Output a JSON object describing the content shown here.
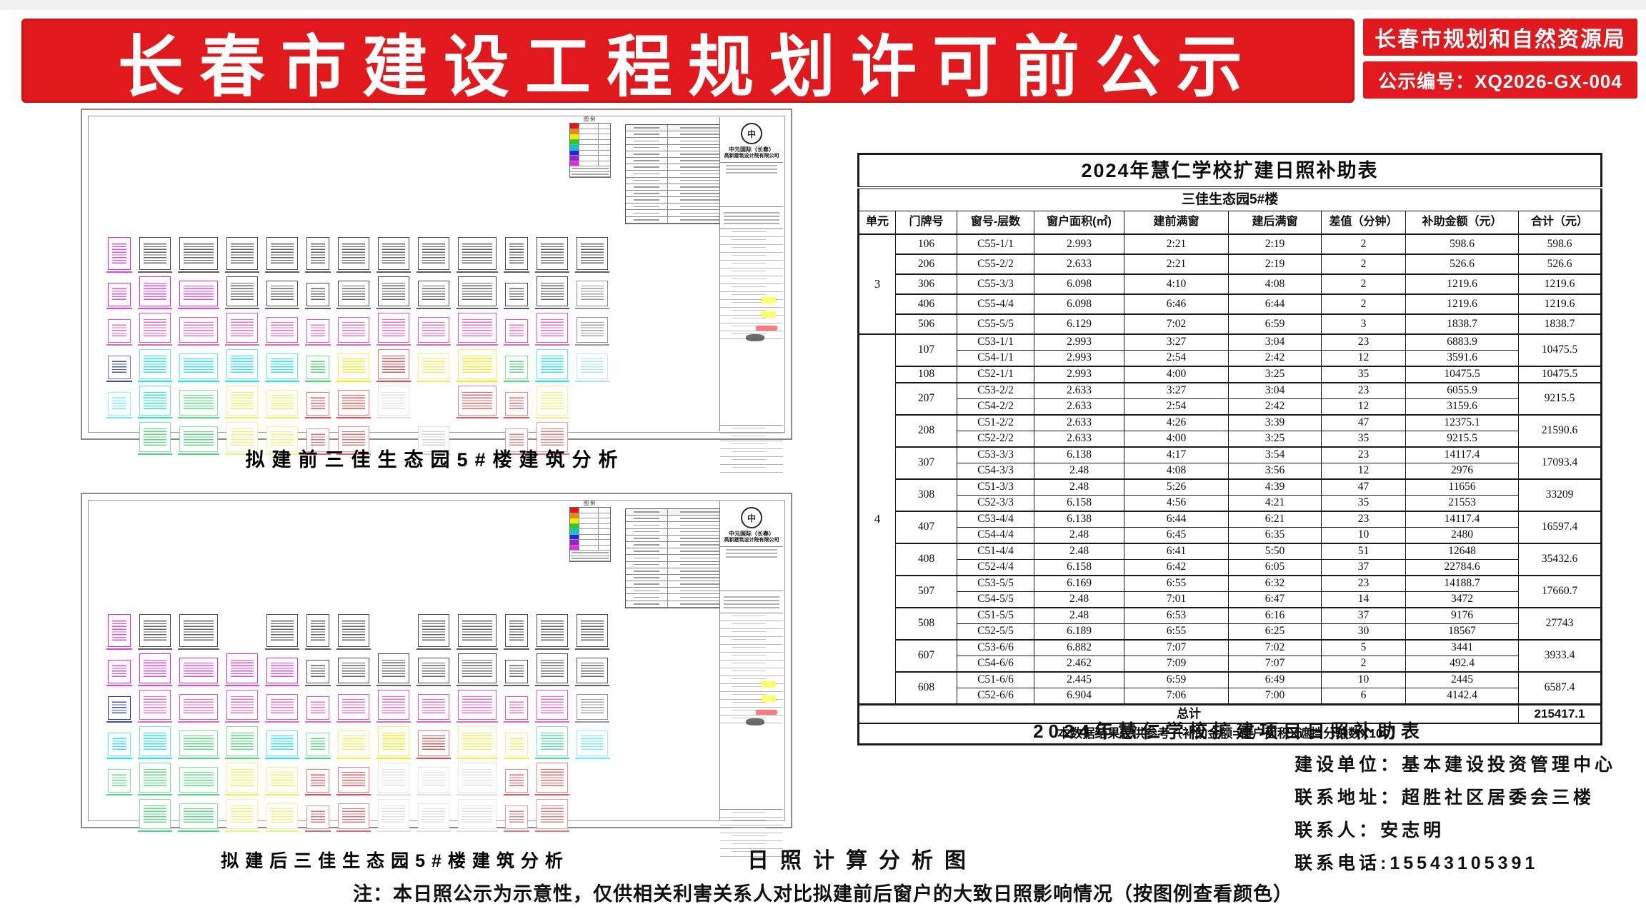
{
  "header": {
    "title": "长春市建设工程规划许可前公示",
    "agency": "长春市规划和自然资源局",
    "notice_no": "公示编号：XQ2026-GX-004",
    "banner_red": "#e2191c"
  },
  "drawings": [
    {
      "caption": "拟建前三佳生态园5#楼建筑分析",
      "legend_label": "图例",
      "legend_colors": [
        "#ee1111",
        "#ee8800",
        "#eeee00",
        "#22cc22",
        "#00cccc",
        "#2222ee",
        "#9922cc",
        "#ee22ee"
      ],
      "company_line1": "中元国际（长春）",
      "company_line2": "高新建筑设计院有限公司",
      "logo_glyph": "中",
      "grid_rows": [
        [
          "#ee22ee",
          "#4a4a4a",
          "#4a4a4a",
          "#4a4a4a",
          "#4a4a4a",
          "#4a4a4a",
          "#4a4a4a",
          "#4a4a4a",
          "#4a4a4a",
          "#4a4a4a",
          "#4a4a4a",
          "#4a4a4a",
          "#4a4a4a"
        ],
        [
          "#ee22ee",
          "#ee22ee",
          "#ee22ee",
          "#4a4a4a",
          "#4a4a4a",
          "#4a4a4a",
          "#4a4a4a",
          "#4a4a4a",
          "#4a4a4a",
          "#4a4a4a",
          "#4a4a4a",
          "#4a4a4a",
          "#8a8a8a"
        ],
        [
          "#f050c0",
          "#f050c0",
          "#f050c0",
          "#f050c0",
          "#f050c0",
          "#f050c0",
          "#f050c0",
          "#f050c0",
          "#f050c0",
          "#f050c0",
          "#f050c0",
          "#f050c0",
          "#909090"
        ],
        [
          "#2233cc",
          "#00e5ff",
          "#00e5ff",
          "#00e5ff",
          "#00e5ff",
          "#22dd55",
          "#eeee00",
          "#ee3333",
          "#eeee44",
          "#eeee00",
          "#33dd66",
          "#00e5ff",
          "#99e0ff"
        ],
        [
          "#55eeff",
          "#00e5cc",
          "#33dd66",
          "#eeee44",
          "#eeee44",
          "#ee3333",
          "#ee3333",
          "#dddddd",
          null,
          "#ee4444",
          "#ee4444",
          "#eeee66",
          null
        ],
        [
          null,
          "#33dd66",
          "#33dd66",
          "#eeee66",
          "#eeee66",
          "#ee5555",
          "#ee5555",
          null,
          "#cccccc",
          null,
          "#ee6666",
          "#ee6666",
          null
        ]
      ]
    },
    {
      "caption": "拟建后三佳生态园5#楼建筑分析",
      "legend_label": "图例",
      "legend_colors": [
        "#ee1111",
        "#ee8800",
        "#eeee00",
        "#22cc22",
        "#00cccc",
        "#2222ee",
        "#9922cc",
        "#ee22ee"
      ],
      "company_line1": "中元国际（长春）",
      "company_line2": "高新建筑设计院有限公司",
      "logo_glyph": "中",
      "grid_rows": [
        [
          "#ee22ee",
          "#4a4a4a",
          "#4a4a4a",
          null,
          "#4a4a4a",
          "#4a4a4a",
          "#4a4a4a",
          null,
          "#4a4a4a",
          "#4a4a4a",
          "#4a4a4a",
          "#4a4a4a",
          "#4a4a4a"
        ],
        [
          "#ee22ee",
          "#ee22ee",
          "#ee22ee",
          "#ee22ee",
          "#ee22ee",
          "#4a4a4a",
          "#4a4a4a",
          "#4a4a4a",
          "#4a4a4a",
          "#4a4a4a",
          "#4a4a4a",
          "#4a4a4a",
          "#4a4a4a"
        ],
        [
          "#2233cc",
          "#f050c0",
          "#f050c0",
          "#f050c0",
          "#f050c0",
          "#f050c0",
          "#f050c0",
          "#f050c0",
          "#f050c0",
          "#f050c0",
          "#f050c0",
          "#f050c0",
          "#909090"
        ],
        [
          "#00e5ff",
          "#00e5ff",
          "#33dd66",
          "#33dd66",
          "#00e5ff",
          "#33dd66",
          "#eeee44",
          "#eeee00",
          "#ee3333",
          "#eeee44",
          "#eeee44",
          "#33dd99",
          "#55eeff"
        ],
        [
          "#33dd66",
          "#33dd66",
          "#33dd66",
          "#eeee44",
          "#eeee44",
          "#ee3333",
          "#ee3333",
          "#dddddd",
          "#dddddd",
          "#dddddd",
          "#ee4444",
          "#ee4444",
          null
        ],
        [
          null,
          "#33dd66",
          "#33dd66",
          "#eeee66",
          "#eeee66",
          "#ee5555",
          "#ee5555",
          "#dddddd",
          "#dddddd",
          "#dddddd",
          "#ee6666",
          "#ee6666",
          null
        ]
      ]
    }
  ],
  "analysis_title": "日照计算分析图",
  "note": "注：本日照公示为示意性，仅供相关利害关系人对比拟建前后窗户的大致日照影响情况（按图例查看颜色）",
  "table_caption": "2024年慧仁学校扩建项目日照补助表",
  "contacts": {
    "lines": [
      "建设单位：基本建设投资管理中心",
      "联系地址：超胜社区居委会三楼",
      "联系人：安志明",
      "联系电话:15543105391"
    ]
  },
  "subsidy_table": {
    "title": "2024年慧仁学校扩建日照补助表",
    "subtitle": "三佳生态园5#楼",
    "columns": [
      "单元",
      "门牌号",
      "窗号-层数",
      "窗户面积(㎡)",
      "建前满窗",
      "建后满窗",
      "差值（分钟）",
      "补助金额（元）",
      "合计（元）"
    ],
    "groups": [
      {
        "unit": "3",
        "doors": [
          {
            "door": "106",
            "rows": [
              [
                "C55-1/1",
                "2.993",
                "2:21",
                "2:19",
                "2",
                "598.6"
              ]
            ],
            "total": "598.6"
          },
          {
            "door": "206",
            "rows": [
              [
                "C55-2/2",
                "2.633",
                "2:21",
                "2:19",
                "2",
                "526.6"
              ]
            ],
            "total": "526.6"
          },
          {
            "door": "306",
            "rows": [
              [
                "C55-3/3",
                "6.098",
                "4:10",
                "4:08",
                "2",
                "1219.6"
              ]
            ],
            "total": "1219.6"
          },
          {
            "door": "406",
            "rows": [
              [
                "C55-4/4",
                "6.098",
                "6:46",
                "6:44",
                "2",
                "1219.6"
              ]
            ],
            "total": "1219.6"
          },
          {
            "door": "506",
            "rows": [
              [
                "C55-5/5",
                "6.129",
                "7:02",
                "6:59",
                "3",
                "1838.7"
              ]
            ],
            "total": "1838.7"
          }
        ]
      },
      {
        "unit": "4",
        "doors": [
          {
            "door": "107",
            "rows": [
              [
                "C53-1/1",
                "2.993",
                "3:27",
                "3:04",
                "23",
                "6883.9"
              ],
              [
                "C54-1/1",
                "2.993",
                "2:54",
                "2:42",
                "12",
                "3591.6"
              ]
            ],
            "total": "10475.5"
          },
          {
            "door": "108",
            "rows": [
              [
                "C52-1/1",
                "2.993",
                "4:00",
                "3:25",
                "35",
                "10475.5"
              ]
            ],
            "total": "10475.5"
          },
          {
            "door": "207",
            "rows": [
              [
                "C53-2/2",
                "2.633",
                "3:27",
                "3:04",
                "23",
                "6055.9"
              ],
              [
                "C54-2/2",
                "2.633",
                "2:54",
                "2:42",
                "12",
                "3159.6"
              ]
            ],
            "total": "9215.5"
          },
          {
            "door": "208",
            "rows": [
              [
                "C51-2/2",
                "2.633",
                "4:26",
                "3:39",
                "47",
                "12375.1"
              ],
              [
                "C52-2/2",
                "2.633",
                "4:00",
                "3:25",
                "35",
                "9215.5"
              ]
            ],
            "total": "21590.6"
          },
          {
            "door": "307",
            "rows": [
              [
                "C53-3/3",
                "6.138",
                "4:17",
                "3:54",
                "23",
                "14117.4"
              ],
              [
                "C54-3/3",
                "2.48",
                "4:08",
                "3:56",
                "12",
                "2976"
              ]
            ],
            "total": "17093.4"
          },
          {
            "door": "308",
            "rows": [
              [
                "C51-3/3",
                "2.48",
                "5:26",
                "4:39",
                "47",
                "11656"
              ],
              [
                "C52-3/3",
                "6.158",
                "4:56",
                "4:21",
                "35",
                "21553"
              ]
            ],
            "total": "33209"
          },
          {
            "door": "407",
            "rows": [
              [
                "C53-4/4",
                "6.138",
                "6:44",
                "6:21",
                "23",
                "14117.4"
              ],
              [
                "C54-4/4",
                "2.48",
                "6:45",
                "6:35",
                "10",
                "2480"
              ]
            ],
            "total": "16597.4"
          },
          {
            "door": "408",
            "rows": [
              [
                "C51-4/4",
                "2.48",
                "6:41",
                "5:50",
                "51",
                "12648"
              ],
              [
                "C52-4/4",
                "6.158",
                "6:42",
                "6:05",
                "37",
                "22784.6"
              ]
            ],
            "total": "35432.6"
          },
          {
            "door": "507",
            "rows": [
              [
                "C53-5/5",
                "6.169",
                "6:55",
                "6:32",
                "23",
                "14188.7"
              ],
              [
                "C54-5/5",
                "2.48",
                "7:01",
                "6:47",
                "14",
                "3472"
              ]
            ],
            "total": "17660.7"
          },
          {
            "door": "508",
            "rows": [
              [
                "C51-5/5",
                "2.48",
                "6:53",
                "6:16",
                "37",
                "9176"
              ],
              [
                "C52-5/5",
                "6.189",
                "6:55",
                "6:25",
                "30",
                "18567"
              ]
            ],
            "total": "27743"
          },
          {
            "door": "607",
            "rows": [
              [
                "C53-6/6",
                "6.882",
                "7:07",
                "7:02",
                "5",
                "3441"
              ],
              [
                "C54-6/6",
                "2.462",
                "7:09",
                "7:07",
                "2",
                "492.4"
              ]
            ],
            "total": "3933.4"
          },
          {
            "door": "608",
            "rows": [
              [
                "C51-6/6",
                "2.445",
                "6:59",
                "6:49",
                "10",
                "2445"
              ],
              [
                "C52-6/6",
                "6.904",
                "7:06",
                "7:00",
                "6",
                "4142.4"
              ]
            ],
            "total": "6587.4"
          }
        ]
      }
    ],
    "grand_total_label": "总计",
    "grand_total": "215417.1",
    "footnote": "本数据结果仅供参考（补助金额=窗户面积X遮挡分钟数X100）"
  }
}
